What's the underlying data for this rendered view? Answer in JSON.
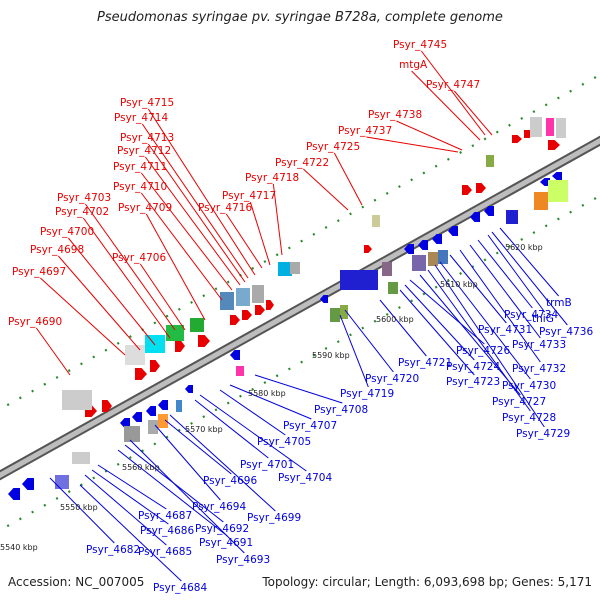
{
  "title": "Pseudomonas syringae pv. syringae B728a, complete genome",
  "footer": {
    "accession": "Accession: NC_007005",
    "summary": "Topology: circular; Length: 6,093,698 bp; Genes: 5,171"
  },
  "colors": {
    "forward": "#e80000",
    "reverse": "#0000e0",
    "backbone": "#9a9a9a",
    "tick_dot": "#2a8a2a"
  },
  "ticks": [
    "5540 kbp",
    "5550 kbp",
    "5560 kbp",
    "5570 kbp",
    "5580 kbp",
    "5590 kbp",
    "5600 kbp",
    "5610 kbp",
    "5620 kbp"
  ],
  "upper_labels": [
    "Psyr_4690",
    "Psyr_4697",
    "Psyr_4698",
    "Psyr_4700",
    "Psyr_4702",
    "Psyr_4703",
    "Psyr_4706",
    "Psyr_4709",
    "Psyr_4710",
    "Psyr_4711",
    "Psyr_4712",
    "Psyr_4713",
    "Psyr_4714",
    "Psyr_4715",
    "Psyr_4716",
    "Psyr_4717",
    "Psyr_4718",
    "Psyr_4722",
    "Psyr_4725",
    "Psyr_4737",
    "Psyr_4738",
    "mtgA",
    "Psyr_4747",
    "Psyr_4745"
  ],
  "lower_labels": [
    "Psyr_4682",
    "Psyr_4684",
    "Psyr_4685",
    "Psyr_4686",
    "Psyr_4687",
    "Psyr_4691",
    "Psyr_4692",
    "Psyr_4693",
    "Psyr_4694",
    "Psyr_4696",
    "Psyr_4699",
    "Psyr_4701",
    "Psyr_4704",
    "Psyr_4705",
    "Psyr_4707",
    "Psyr_4708",
    "Psyr_4719",
    "Psyr_4720",
    "Psyr_4721",
    "Psyr_4723",
    "Psyr_4724",
    "Psyr_4726",
    "Psyr_4727",
    "Psyr_4728",
    "Psyr_4729",
    "Psyr_4730",
    "Psyr_4731",
    "Psyr_4732",
    "Psyr_4733",
    "Psyr_4734",
    "thiG",
    "trmB",
    "Psyr_4736"
  ]
}
